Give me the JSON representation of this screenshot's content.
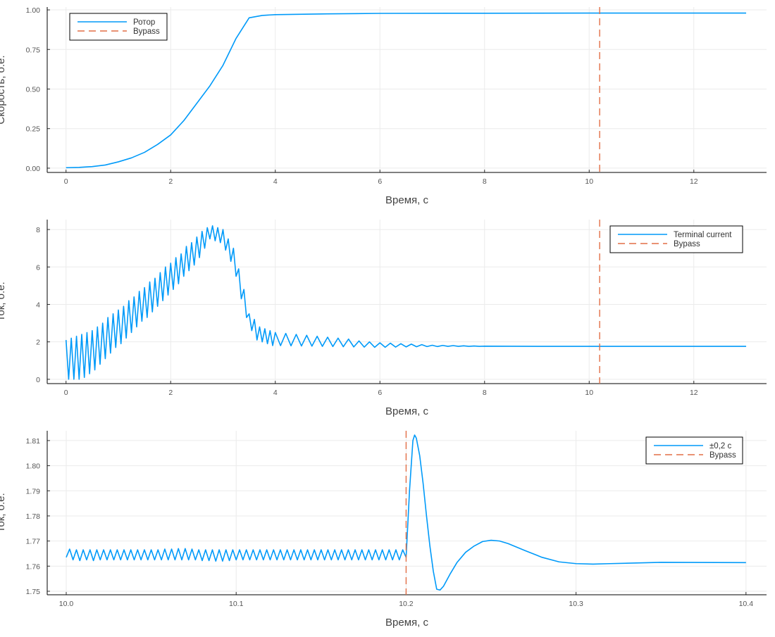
{
  "chart_data": [
    {
      "type": "line",
      "xlabel": "Время, с",
      "ylabel": "Скорость, о.е.",
      "xlim": [
        -0.36,
        13.39
      ],
      "ylim": [
        -0.027,
        1.018
      ],
      "xticks": [
        0,
        2,
        4,
        6,
        8,
        10,
        12
      ],
      "yticks": [
        {
          "value": 0,
          "label": "0.00"
        },
        0.25,
        {
          "value": 0.5,
          "label": "0.50"
        },
        0.75,
        {
          "value": 1,
          "label": "1.00"
        }
      ],
      "grid": true,
      "legend": "top-left",
      "series": [
        {
          "name": "Ротор",
          "color": "#009af9",
          "x": [
            0,
            0.25,
            0.5,
            0.75,
            1,
            1.25,
            1.5,
            1.75,
            2,
            2.25,
            2.5,
            2.75,
            3,
            3.25,
            3.5,
            3.75,
            4,
            5,
            6,
            8,
            10,
            13
          ],
          "values": [
            0.003,
            0.005,
            0.01,
            0.02,
            0.04,
            0.065,
            0.1,
            0.15,
            0.21,
            0.3,
            0.41,
            0.52,
            0.65,
            0.82,
            0.95,
            0.965,
            0.97,
            0.975,
            0.978,
            0.979,
            0.98,
            0.98
          ]
        },
        {
          "name": "Bypass",
          "color": "#e26f46",
          "dash": true,
          "x": 10.2
        }
      ]
    },
    {
      "type": "line",
      "xlabel": "Время, с",
      "ylabel": "Ток, о.е.",
      "xlim": [
        -0.36,
        13.39
      ],
      "ylim": [
        -0.23,
        8.53
      ],
      "xticks": [
        0,
        2,
        4,
        6,
        8,
        10,
        12
      ],
      "yticks": [
        0,
        2,
        4,
        6,
        8
      ],
      "grid": true,
      "legend": "top-right",
      "series": [
        {
          "name": "Terminal current",
          "color": "#009af9",
          "x": [
            0,
            0.05,
            0.1,
            0.15,
            0.2,
            0.25,
            0.3,
            0.35,
            0.4,
            0.45,
            0.5,
            0.55,
            0.6,
            0.65,
            0.7,
            0.75,
            0.8,
            0.85,
            0.9,
            0.95,
            1,
            1.05,
            1.1,
            1.15,
            1.2,
            1.25,
            1.3,
            1.35,
            1.4,
            1.45,
            1.5,
            1.55,
            1.6,
            1.65,
            1.7,
            1.75,
            1.8,
            1.85,
            1.9,
            1.95,
            2,
            2.05,
            2.1,
            2.15,
            2.2,
            2.25,
            2.3,
            2.35,
            2.4,
            2.45,
            2.5,
            2.55,
            2.6,
            2.65,
            2.7,
            2.75,
            2.8,
            2.85,
            2.9,
            2.95,
            3,
            3.05,
            3.1,
            3.15,
            3.2,
            3.25,
            3.3,
            3.35,
            3.4,
            3.45,
            3.5,
            3.55,
            3.6,
            3.65,
            3.7,
            3.75,
            3.8,
            3.85,
            3.9,
            3.95,
            4,
            4.1,
            4.2,
            4.3,
            4.4,
            4.5,
            4.6,
            4.7,
            4.8,
            4.9,
            5,
            5.1,
            5.2,
            5.3,
            5.4,
            5.5,
            5.6,
            5.7,
            5.8,
            5.9,
            6,
            6.1,
            6.2,
            6.3,
            6.4,
            6.5,
            6.6,
            6.7,
            6.8,
            6.9,
            7,
            7.1,
            7.2,
            7.3,
            7.4,
            7.5,
            7.6,
            7.7,
            7.8,
            7.9,
            8,
            9,
            10,
            11,
            12,
            13
          ],
          "values": [
            2.1,
            0,
            2.2,
            0,
            2.3,
            0,
            2.4,
            0.1,
            2.5,
            0.3,
            2.6,
            0.5,
            2.8,
            0.8,
            3.0,
            1.1,
            3.3,
            1.4,
            3.5,
            1.7,
            3.7,
            1.9,
            3.9,
            2.2,
            4.2,
            2.5,
            4.4,
            2.8,
            4.7,
            3.1,
            4.9,
            3.3,
            5.2,
            3.6,
            5.4,
            3.9,
            5.7,
            4.2,
            6.0,
            4.5,
            6.2,
            4.8,
            6.5,
            5.1,
            6.7,
            5.5,
            7.1,
            5.8,
            7.3,
            6.1,
            7.6,
            6.5,
            7.9,
            7.0,
            8.1,
            7.5,
            8.2,
            7.4,
            8.1,
            7.3,
            8.0,
            6.9,
            7.5,
            6.3,
            7.0,
            5.5,
            5.9,
            4.3,
            4.8,
            3.3,
            3.5,
            2.6,
            3.2,
            2.1,
            2.8,
            2.0,
            2.7,
            1.9,
            2.6,
            1.8,
            2.5,
            1.8,
            2.45,
            1.79,
            2.4,
            1.78,
            2.35,
            1.77,
            2.3,
            1.76,
            2.25,
            1.75,
            2.2,
            1.74,
            2.15,
            1.73,
            2.05,
            1.72,
            2.0,
            1.71,
            1.95,
            1.71,
            1.93,
            1.72,
            1.9,
            1.73,
            1.88,
            1.74,
            1.85,
            1.75,
            1.82,
            1.75,
            1.81,
            1.76,
            1.8,
            1.76,
            1.79,
            1.76,
            1.78,
            1.76,
            1.77,
            1.76,
            1.76,
            1.76,
            1.76,
            1.76
          ]
        },
        {
          "name": "Bypass",
          "color": "#e26f46",
          "dash": true,
          "x": 10.2
        }
      ]
    },
    {
      "type": "line",
      "xlabel": "Время, с",
      "ylabel": "Ток, о.е.",
      "xlim": [
        9.9888,
        10.4121
      ],
      "ylim": [
        1.7486,
        1.8139
      ],
      "xticks": [
        {
          "value": 10,
          "label": "10.0"
        },
        10.1,
        10.2,
        10.3,
        10.4
      ],
      "yticks": [
        1.75,
        1.76,
        1.77,
        1.78,
        1.79,
        {
          "value": 1.8,
          "label": "1.80"
        },
        1.81
      ],
      "grid": true,
      "legend": "top-right",
      "series": [
        {
          "name": "±0,2 с",
          "color": "#009af9",
          "x": [
            10,
            10.002,
            10.004,
            10.006,
            10.008,
            10.01,
            10.012,
            10.014,
            10.016,
            10.018,
            10.02,
            10.022,
            10.024,
            10.026,
            10.028,
            10.03,
            10.032,
            10.034,
            10.036,
            10.038,
            10.04,
            10.042,
            10.044,
            10.046,
            10.048,
            10.05,
            10.052,
            10.054,
            10.056,
            10.058,
            10.06,
            10.062,
            10.064,
            10.066,
            10.068,
            10.07,
            10.072,
            10.074,
            10.076,
            10.078,
            10.08,
            10.082,
            10.084,
            10.086,
            10.088,
            10.09,
            10.092,
            10.094,
            10.096,
            10.098,
            10.1,
            10.102,
            10.104,
            10.106,
            10.108,
            10.11,
            10.112,
            10.114,
            10.116,
            10.118,
            10.12,
            10.122,
            10.124,
            10.126,
            10.128,
            10.13,
            10.132,
            10.134,
            10.136,
            10.138,
            10.14,
            10.142,
            10.144,
            10.146,
            10.148,
            10.15,
            10.152,
            10.154,
            10.156,
            10.158,
            10.16,
            10.162,
            10.164,
            10.166,
            10.168,
            10.17,
            10.172,
            10.174,
            10.176,
            10.178,
            10.18,
            10.182,
            10.184,
            10.186,
            10.188,
            10.19,
            10.192,
            10.194,
            10.196,
            10.198,
            10.2,
            10.202,
            10.204,
            10.205,
            10.206,
            10.208,
            10.21,
            10.212,
            10.214,
            10.216,
            10.218,
            10.22,
            10.222,
            10.226,
            10.23,
            10.235,
            10.24,
            10.245,
            10.25,
            10.255,
            10.26,
            10.27,
            10.28,
            10.29,
            10.3,
            10.31,
            10.32,
            10.35,
            10.4
          ],
          "values": [
            1.7635,
            1.7668,
            1.7625,
            1.7665,
            1.7622,
            1.7665,
            1.7625,
            1.7665,
            1.7622,
            1.7665,
            1.7625,
            1.7665,
            1.7625,
            1.7665,
            1.7625,
            1.7665,
            1.7625,
            1.7665,
            1.7625,
            1.7665,
            1.7625,
            1.7665,
            1.7625,
            1.7665,
            1.7625,
            1.7665,
            1.7625,
            1.7665,
            1.7625,
            1.7668,
            1.7625,
            1.7668,
            1.7625,
            1.767,
            1.7625,
            1.767,
            1.7625,
            1.7668,
            1.7625,
            1.7665,
            1.7622,
            1.7665,
            1.7622,
            1.7665,
            1.762,
            1.7665,
            1.762,
            1.7665,
            1.7622,
            1.7665,
            1.7625,
            1.7665,
            1.7625,
            1.7665,
            1.7625,
            1.7665,
            1.7625,
            1.7665,
            1.7625,
            1.7665,
            1.7625,
            1.7665,
            1.7625,
            1.7665,
            1.7625,
            1.7665,
            1.7625,
            1.7665,
            1.7625,
            1.7665,
            1.7625,
            1.7665,
            1.7625,
            1.7665,
            1.7625,
            1.7665,
            1.7625,
            1.7665,
            1.7625,
            1.7665,
            1.7625,
            1.7665,
            1.7625,
            1.7665,
            1.7625,
            1.7665,
            1.7625,
            1.7665,
            1.7625,
            1.7665,
            1.7625,
            1.7665,
            1.7625,
            1.7665,
            1.7625,
            1.7665,
            1.7625,
            1.7665,
            1.7625,
            1.7665,
            1.7635,
            1.79,
            1.81,
            1.8122,
            1.811,
            1.804,
            1.793,
            1.78,
            1.768,
            1.758,
            1.7508,
            1.7505,
            1.752,
            1.757,
            1.7615,
            1.7655,
            1.768,
            1.7698,
            1.7703,
            1.77,
            1.769,
            1.7662,
            1.7635,
            1.7617,
            1.761,
            1.7608,
            1.761,
            1.7615,
            1.7614
          ]
        },
        {
          "name": "Bypass",
          "color": "#e26f46",
          "dash": true,
          "x": 10.2
        }
      ]
    }
  ]
}
